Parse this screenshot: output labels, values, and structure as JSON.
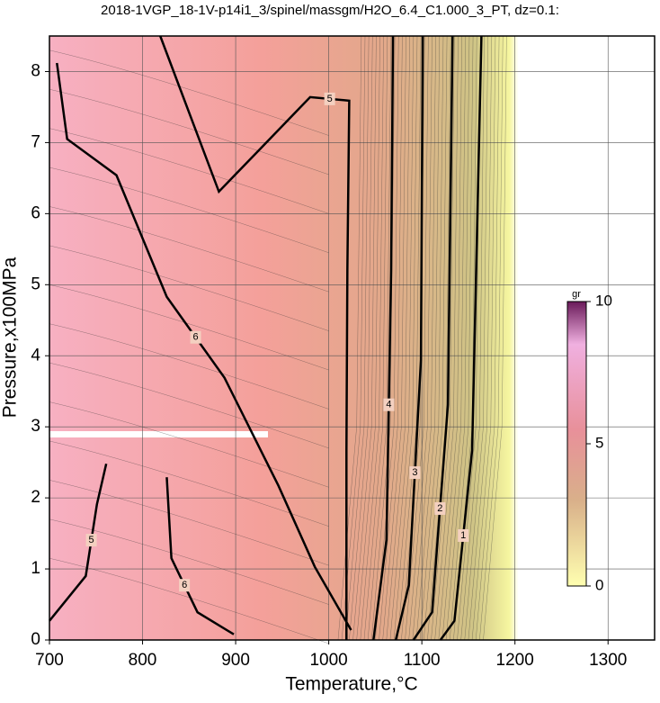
{
  "chart_data": {
    "type": "contour",
    "title": "2018-1VGP_18-1V-p14i1_3/spinel/massgm/H2O_6.4_C1.000_3_PT, dz=0.1:",
    "x_label": "Temperature,°C",
    "y_label": "Pressure,x100MPa",
    "xlim": [
      700,
      1350
    ],
    "ylim": [
      0,
      8.5
    ],
    "xticks": [
      700,
      800,
      900,
      1000,
      1100,
      1200,
      1300
    ],
    "yticks": [
      0,
      1,
      2,
      3,
      4,
      5,
      6,
      7,
      8
    ],
    "grid": true,
    "contours": [
      {
        "level": 6,
        "color": "#000000",
        "x": [
          708,
          719,
          772,
          826,
          888,
          946,
          985,
          1024
        ],
        "y": [
          8.12,
          7.05,
          6.54,
          4.83,
          3.69,
          2.17,
          1.03,
          0.14
        ]
      },
      {
        "level": 5,
        "color": "#000000",
        "x": [
          819,
          882,
          927,
          980,
          1022,
          1020,
          1019,
          1019
        ],
        "y": [
          8.5,
          6.31,
          6.92,
          7.64,
          7.59,
          5.21,
          2.67,
          0
        ]
      },
      {
        "level": 4,
        "color": "#000000",
        "x": [
          1069,
          1067,
          1062,
          1048
        ],
        "y": [
          8.5,
          5.21,
          1.41,
          0
        ]
      },
      {
        "level": 3,
        "color": "#000000",
        "x": [
          1101,
          1099,
          1086,
          1072
        ],
        "y": [
          8.5,
          3.94,
          0.77,
          0
        ]
      },
      {
        "level": 2,
        "color": "#000000",
        "x": [
          1133,
          1128,
          1111,
          1091
        ],
        "y": [
          8.5,
          3.31,
          0.39,
          0
        ]
      },
      {
        "level": 1,
        "color": "#000000",
        "x": [
          1164,
          1154,
          1135,
          1120
        ],
        "y": [
          8.5,
          2.67,
          0.27,
          0
        ]
      },
      {
        "level": 5,
        "color": "#000000",
        "x": [
          700,
          739,
          751,
          761
        ],
        "y": [
          0.27,
          0.9,
          1.91,
          2.48
        ]
      },
      {
        "level": 6,
        "color": "#000000",
        "x": [
          826,
          831,
          859,
          898
        ],
        "y": [
          2.29,
          1.15,
          0.39,
          0.08
        ]
      }
    ],
    "colorbar": {
      "label": "gr",
      "lim": [
        0,
        10
      ],
      "ticks": [
        0,
        5,
        10
      ]
    }
  }
}
